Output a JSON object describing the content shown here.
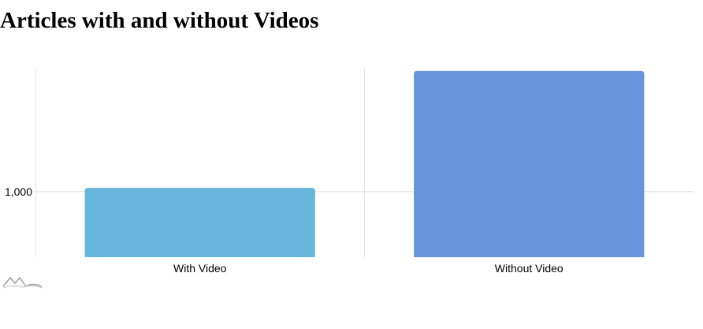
{
  "title": "Articles with and without Videos",
  "chart_data": {
    "type": "bar",
    "categories": [
      "With Video",
      "Without Video"
    ],
    "values": [
      1030,
      1975
    ],
    "colors": [
      "#67b7dc",
      "#6794dc"
    ],
    "yticks": [
      1000
    ],
    "ytick_labels": [
      "1,000"
    ],
    "ylim": [
      470,
      2000
    ],
    "grid": true,
    "xlabel": "",
    "ylabel": ""
  },
  "logo": {
    "icon": "amcharts-logo-icon"
  }
}
